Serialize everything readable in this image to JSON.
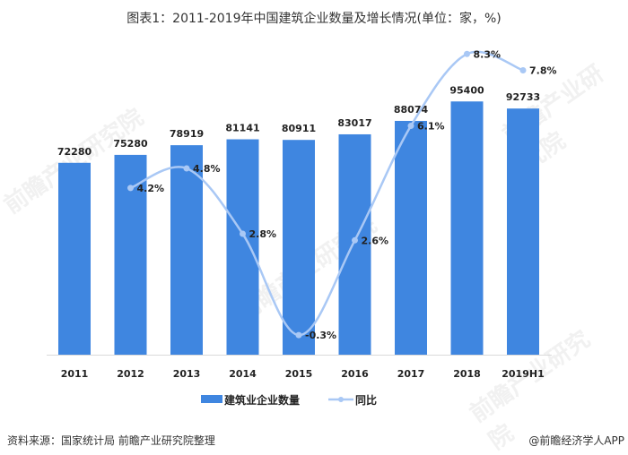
{
  "title": "图表1：2011-2019年中国建筑企业数量及增长情况(单位：家，%)",
  "source": "资料来源：国家统计局 前瞻产业研究院整理",
  "credit": "@前瞻经济学人APP",
  "watermark": "前瞻产业研究院",
  "chart_data": {
    "type": "bar+line",
    "categories": [
      "2011",
      "2012",
      "2013",
      "2014",
      "2015",
      "2016",
      "2017",
      "2018",
      "2019H1"
    ],
    "series": [
      {
        "name": "建筑业企业数量",
        "type": "bar",
        "color": "#3f86e0",
        "values": [
          72280,
          75280,
          78919,
          81141,
          80911,
          83017,
          88074,
          95400,
          92733
        ]
      },
      {
        "name": "同比",
        "type": "line",
        "color": "#a9c8f5",
        "smooth": true,
        "values": [
          null,
          4.2,
          4.8,
          2.8,
          -0.3,
          2.6,
          6.1,
          8.3,
          7.8
        ],
        "labels": [
          "",
          "4.2%",
          "4.8%",
          "2.8%",
          "-0.3%",
          "2.6%",
          "6.1%",
          "8.3%",
          "7.8%"
        ]
      }
    ],
    "legend": "bottom",
    "grid": false,
    "ylim": [
      0,
      110000
    ]
  }
}
